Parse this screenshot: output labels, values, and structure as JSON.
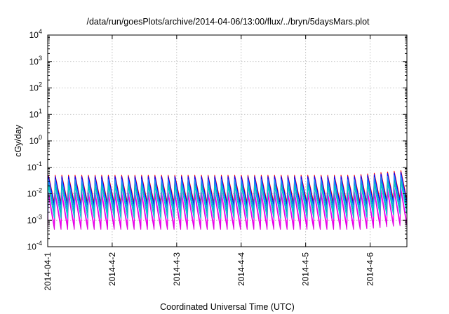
{
  "chart_data": {
    "type": "line",
    "title": "/data/run/goesPlots/archive/2014-04-06/13:00/flux/../bryn/5daysMars.plot",
    "xlabel": "Coordinated Universal Time (UTC)",
    "ylabel": "cGy/day",
    "y_scale": "log",
    "ylim": [
      0.0001,
      10000
    ],
    "xlim_days": [
      0,
      5.57
    ],
    "grid": true,
    "x_ticks": [
      {
        "value": 0,
        "label": "2014-04-1"
      },
      {
        "value": 1,
        "label": "2014-4-2"
      },
      {
        "value": 2,
        "label": "2014-4-3"
      },
      {
        "value": 3,
        "label": "2014-4-4"
      },
      {
        "value": 4,
        "label": "2014-4-5"
      },
      {
        "value": 5,
        "label": "2014-4-6"
      }
    ],
    "y_ticks": [
      {
        "value": 0.0001,
        "base": "10",
        "exp": "-4"
      },
      {
        "value": 0.001,
        "base": "10",
        "exp": "-3"
      },
      {
        "value": 0.01,
        "base": "10",
        "exp": "-2"
      },
      {
        "value": 0.1,
        "base": "10",
        "exp": "-1"
      },
      {
        "value": 1,
        "base": "10",
        "exp": "0"
      },
      {
        "value": 10,
        "base": "10",
        "exp": "1"
      },
      {
        "value": 100,
        "base": "10",
        "exp": "2"
      },
      {
        "value": 1000,
        "base": "10",
        "exp": "3"
      },
      {
        "value": 10000,
        "base": "10",
        "exp": "4"
      }
    ],
    "sawtooth": {
      "cycles_per_day": 9.7,
      "cycles": 54
    },
    "series": [
      {
        "color": "#ff00ff",
        "peak": 0.012,
        "trough": 0.0006,
        "peak_late": 0.018,
        "trough_late": 0.0009
      },
      {
        "color": "#e000e0",
        "peak": 0.009,
        "trough": 0.00045,
        "peak_late": 0.014,
        "trough_late": 0.0007
      },
      {
        "color": "#ff0000",
        "peak": 0.05,
        "trough": 0.0045,
        "peak_late": 0.08,
        "trough_late": 0.007
      },
      {
        "color": "#0000ff",
        "peak": 0.045,
        "trough": 0.0035,
        "peak_late": 0.07,
        "trough_late": 0.0055
      },
      {
        "color": "#00aaaa",
        "peak": 0.028,
        "trough": 0.0018,
        "peak_late": 0.042,
        "trough_late": 0.0028
      },
      {
        "color": "#1e90ff",
        "peak": 0.035,
        "trough": 0.0025,
        "peak_late": 0.055,
        "trough_late": 0.004
      },
      {
        "color": "#00cccc",
        "peak": 0.02,
        "trough": 0.0012,
        "peak_late": 0.03,
        "trough_late": 0.0019
      }
    ]
  }
}
